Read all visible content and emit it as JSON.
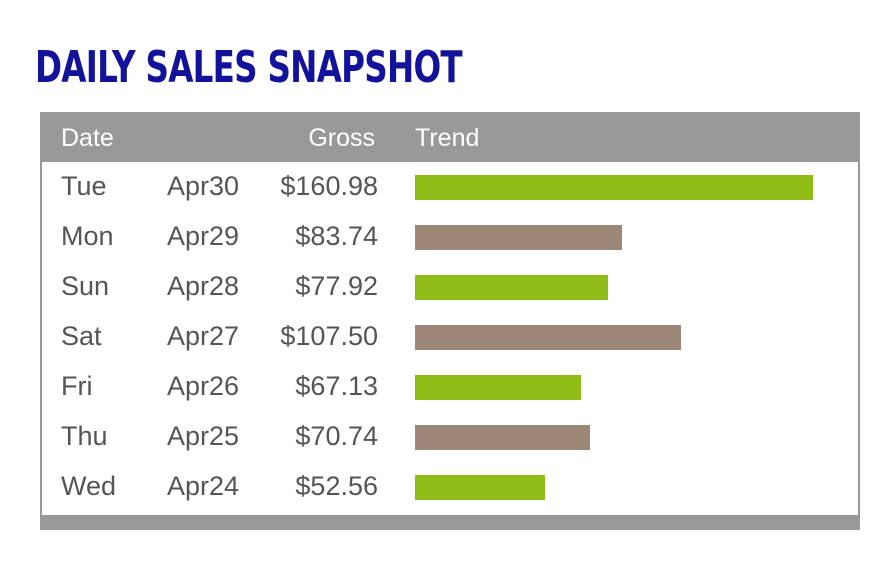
{
  "title": "DAILY SALES SNAPSHOT",
  "colors": {
    "title": "#12129a",
    "header_bg": "#999999",
    "text": "#555555",
    "bar_green": "#8fbc17",
    "bar_taupe": "#9c8678"
  },
  "chart_data": {
    "type": "table",
    "columns": [
      "Date",
      "Gross",
      "Trend"
    ],
    "rows": [
      {
        "day": "Tue",
        "date": "Apr30",
        "gross": "$160.98",
        "value": 160.98,
        "bar_color": "green"
      },
      {
        "day": "Mon",
        "date": "Apr29",
        "gross": "$83.74",
        "value": 83.74,
        "bar_color": "taupe"
      },
      {
        "day": "Sun",
        "date": "Apr28",
        "gross": "$77.92",
        "value": 77.92,
        "bar_color": "green"
      },
      {
        "day": "Sat",
        "date": "Apr27",
        "gross": "$107.50",
        "value": 107.5,
        "bar_color": "taupe"
      },
      {
        "day": "Fri",
        "date": "Apr26",
        "gross": "$67.13",
        "value": 67.13,
        "bar_color": "green"
      },
      {
        "day": "Thu",
        "date": "Apr25",
        "gross": "$70.74",
        "value": 70.74,
        "bar_color": "taupe"
      },
      {
        "day": "Wed",
        "date": "Apr24",
        "gross": "$52.56",
        "value": 52.56,
        "bar_color": "green"
      }
    ]
  }
}
